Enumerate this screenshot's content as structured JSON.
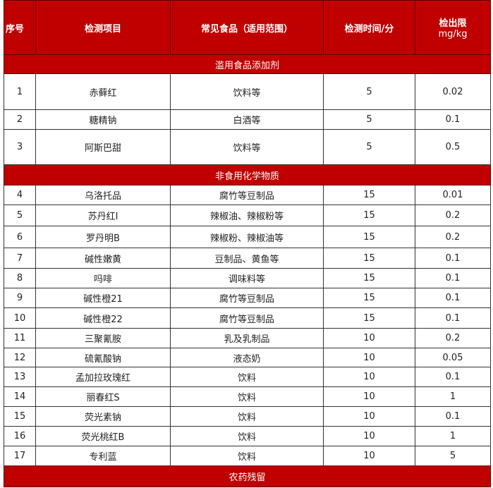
{
  "header": {
    "no": "序号",
    "item": "检测项目",
    "food": "常见食品（适用范围）",
    "time": "检测时间/分",
    "limit_line1": "检出限",
    "limit_line2": "mg/kg"
  },
  "colors": {
    "header_bg": "#c00000",
    "header_text": "#ffffff"
  },
  "sections": [
    {
      "title": "滥用食品添加剂",
      "rows": [
        {
          "no": "1",
          "item": "赤藓红",
          "food": "饮料等",
          "time": "5",
          "limit": "0.02"
        },
        {
          "no": "2",
          "item": "糖精钠",
          "food": "白酒等",
          "time": "5",
          "limit": "0.1"
        },
        {
          "no": "3",
          "item": "阿斯巴甜",
          "food": "饮料等",
          "time": "5",
          "limit": "0.5"
        }
      ]
    },
    {
      "title": "非食用化学物质",
      "rows": [
        {
          "no": "4",
          "item": "乌洛托品",
          "food": "腐竹等豆制品",
          "time": "15",
          "limit": "0.01"
        },
        {
          "no": "5",
          "item": "苏丹红I",
          "food": "辣椒油、辣椒粉等",
          "time": "15",
          "limit": "0.2"
        },
        {
          "no": "6",
          "item": "罗丹明B",
          "food": "辣椒粉、辣椒油等",
          "time": "15",
          "limit": "0.2"
        },
        {
          "no": "7",
          "item": "碱性嫩黄",
          "food": "豆制品、黄鱼等",
          "time": "15",
          "limit": "0.1"
        },
        {
          "no": "8",
          "item": "吗啡",
          "food": "调味料等",
          "time": "15",
          "limit": "0.1"
        },
        {
          "no": "9",
          "item": "碱性橙21",
          "food": "腐竹等豆制品",
          "time": "15",
          "limit": "0.1"
        },
        {
          "no": "10",
          "item": "碱性橙22",
          "food": "腐竹等豆制品",
          "time": "15",
          "limit": "0.1"
        },
        {
          "no": "11",
          "item": "三聚氰胺",
          "food": "乳及乳制品",
          "time": "10",
          "limit": "0.2"
        },
        {
          "no": "12",
          "item": "硫氰酸钠",
          "food": "液态奶",
          "time": "10",
          "limit": "0.05"
        },
        {
          "no": "13",
          "item": "孟加拉玫瑰红",
          "food": "饮料",
          "time": "10",
          "limit": "0.1"
        },
        {
          "no": "14",
          "item": "丽春红S",
          "food": "饮料",
          "time": "10",
          "limit": "1"
        },
        {
          "no": "15",
          "item": "荧光素钠",
          "food": "饮料",
          "time": "10",
          "limit": "0.1"
        },
        {
          "no": "16",
          "item": "荧光桃红B",
          "food": "饮料",
          "time": "10",
          "limit": "1"
        },
        {
          "no": "17",
          "item": "专利蓝",
          "food": "饮料",
          "time": "10",
          "limit": "5"
        }
      ]
    },
    {
      "title": "农药残留",
      "rows": []
    }
  ]
}
